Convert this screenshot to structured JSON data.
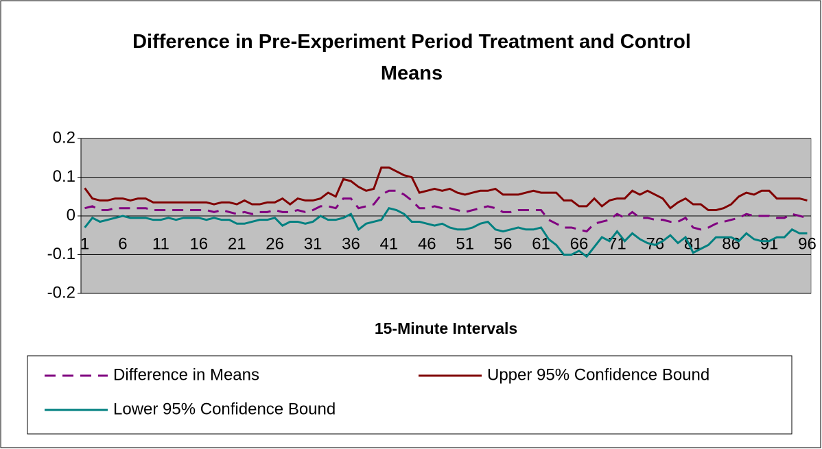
{
  "chart_data": {
    "type": "line",
    "title": "Difference in Pre-Experiment Period Treatment and Control Means",
    "x_label": "15-Minute Intervals",
    "categories": [
      "1",
      null,
      null,
      null,
      null,
      "6",
      null,
      null,
      null,
      null,
      "11",
      null,
      null,
      null,
      null,
      "16",
      null,
      null,
      null,
      null,
      "21",
      null,
      null,
      null,
      null,
      "26",
      null,
      null,
      null,
      null,
      "31",
      null,
      null,
      null,
      null,
      "36",
      null,
      null,
      null,
      null,
      "41",
      null,
      null,
      null,
      null,
      "46",
      null,
      null,
      null,
      null,
      "51",
      null,
      null,
      null,
      null,
      "56",
      null,
      null,
      null,
      null,
      "61",
      null,
      null,
      null,
      null,
      "66",
      null,
      null,
      null,
      null,
      "71",
      null,
      null,
      null,
      null,
      "76",
      null,
      null,
      null,
      null,
      "81",
      null,
      null,
      null,
      null,
      "86",
      null,
      null,
      null,
      null,
      "91",
      null,
      null,
      null,
      null,
      "96"
    ],
    "series": [
      {
        "name": "Difference in Means",
        "color": "#800080",
        "dashed": true,
        "values": [
          0.02,
          0.025,
          0.015,
          0.015,
          0.02,
          0.02,
          0.02,
          0.02,
          0.02,
          0.015,
          0.015,
          0.015,
          0.015,
          0.015,
          0.015,
          0.015,
          0.015,
          0.01,
          0.015,
          0.01,
          0.005,
          0.01,
          0.005,
          0.01,
          0.01,
          0.015,
          0.01,
          0.01,
          0.015,
          0.01,
          0.015,
          0.025,
          0.025,
          0.02,
          0.045,
          0.045,
          0.02,
          0.025,
          0.03,
          0.055,
          0.065,
          0.065,
          0.055,
          0.04,
          0.02,
          0.02,
          0.025,
          0.02,
          0.02,
          0.015,
          0.01,
          0.015,
          0.02,
          0.025,
          0.02,
          0.01,
          0.01,
          0.015,
          0.015,
          0.015,
          0.015,
          -0.01,
          -0.02,
          -0.03,
          -0.03,
          -0.035,
          -0.04,
          -0.02,
          -0.015,
          -0.01,
          0.005,
          -0.005,
          0.01,
          -0.005,
          -0.005,
          -0.01,
          -0.01,
          -0.015,
          -0.015,
          -0.005,
          -0.03,
          -0.035,
          -0.03,
          -0.02,
          -0.015,
          -0.01,
          -0.005,
          0.005,
          0,
          0,
          0,
          -0.005,
          -0.005,
          0.005,
          0,
          -0.005
        ]
      },
      {
        "name": "Upper 95% Confidence Bound",
        "color": "#800000",
        "dashed": false,
        "values": [
          0.072,
          0.045,
          0.04,
          0.04,
          0.045,
          0.045,
          0.04,
          0.045,
          0.045,
          0.035,
          0.035,
          0.035,
          0.035,
          0.035,
          0.035,
          0.035,
          0.035,
          0.03,
          0.035,
          0.035,
          0.03,
          0.04,
          0.03,
          0.03,
          0.035,
          0.035,
          0.045,
          0.03,
          0.045,
          0.04,
          0.04,
          0.045,
          0.06,
          0.05,
          0.095,
          0.09,
          0.075,
          0.065,
          0.07,
          0.125,
          0.125,
          0.115,
          0.105,
          0.1,
          0.06,
          0.065,
          0.07,
          0.065,
          0.07,
          0.06,
          0.055,
          0.06,
          0.065,
          0.065,
          0.07,
          0.055,
          0.055,
          0.055,
          0.06,
          0.065,
          0.06,
          0.06,
          0.06,
          0.04,
          0.04,
          0.025,
          0.025,
          0.045,
          0.025,
          0.04,
          0.045,
          0.045,
          0.065,
          0.055,
          0.065,
          0.055,
          0.045,
          0.02,
          0.035,
          0.045,
          0.03,
          0.03,
          0.015,
          0.015,
          0.02,
          0.03,
          0.05,
          0.06,
          0.055,
          0.065,
          0.065,
          0.045,
          0.045,
          0.045,
          0.045,
          0.04
        ]
      },
      {
        "name": "Lower 95% Confidence Bound",
        "color": "#008080",
        "dashed": false,
        "values": [
          -0.03,
          -0.005,
          -0.015,
          -0.01,
          -0.005,
          0,
          -0.005,
          -0.005,
          -0.005,
          -0.01,
          -0.01,
          -0.005,
          -0.01,
          -0.005,
          -0.005,
          -0.005,
          -0.01,
          -0.005,
          -0.01,
          -0.01,
          -0.02,
          -0.02,
          -0.015,
          -0.01,
          -0.01,
          -0.005,
          -0.025,
          -0.015,
          -0.015,
          -0.02,
          -0.015,
          0,
          -0.01,
          -0.01,
          -0.005,
          0.005,
          -0.035,
          -0.02,
          -0.015,
          -0.01,
          0.02,
          0.015,
          0.005,
          -0.015,
          -0.015,
          -0.02,
          -0.025,
          -0.02,
          -0.03,
          -0.035,
          -0.035,
          -0.03,
          -0.02,
          -0.015,
          -0.035,
          -0.04,
          -0.035,
          -0.03,
          -0.035,
          -0.035,
          -0.03,
          -0.06,
          -0.075,
          -0.1,
          -0.1,
          -0.09,
          -0.105,
          -0.08,
          -0.055,
          -0.065,
          -0.04,
          -0.065,
          -0.045,
          -0.06,
          -0.07,
          -0.075,
          -0.065,
          -0.05,
          -0.07,
          -0.055,
          -0.095,
          -0.085,
          -0.075,
          -0.055,
          -0.055,
          -0.055,
          -0.065,
          -0.045,
          -0.06,
          -0.065,
          -0.065,
          -0.055,
          -0.055,
          -0.035,
          -0.045,
          -0.045
        ]
      }
    ],
    "ylim": [
      -0.2,
      0.2
    ],
    "yticks": [
      -0.2,
      -0.1,
      0,
      0.1,
      0.2
    ],
    "grid": true,
    "plot_background": "#c0c0c0",
    "legend": "bottom"
  }
}
